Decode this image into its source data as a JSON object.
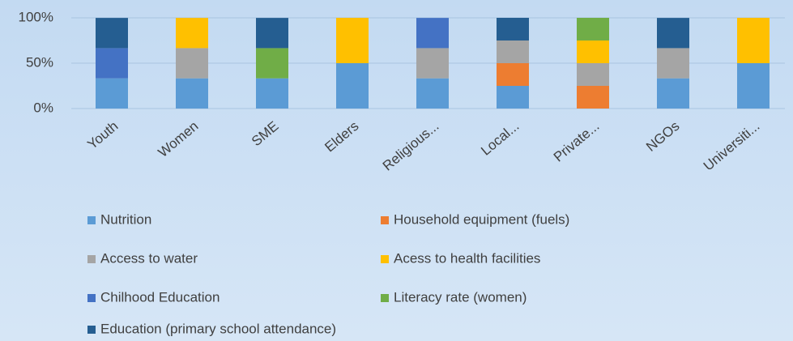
{
  "chart_data": {
    "type": "stacked_bar",
    "categories": [
      "Youth",
      "Women",
      "SME",
      "Elders",
      "Religious...",
      "Local...",
      "Private...",
      "NGOs",
      "Universiti..."
    ],
    "series": [
      {
        "name": "Nutrition",
        "color": "#5b9bd5",
        "values": [
          33.3,
          33.3,
          33.3,
          50,
          33.3,
          25,
          0,
          33.3,
          50
        ]
      },
      {
        "name": "Household equipment (fuels)",
        "color": "#ed7d31",
        "values": [
          0,
          0,
          0,
          0,
          0,
          25,
          25,
          0,
          0
        ]
      },
      {
        "name": "Access to water",
        "color": "#a5a5a5",
        "values": [
          0,
          33.3,
          0,
          0,
          33.3,
          25,
          25,
          33.3,
          0
        ]
      },
      {
        "name": "Acess to health facilities",
        "color": "#ffc000",
        "values": [
          0,
          33.3,
          0,
          50,
          0,
          0,
          25,
          0,
          50
        ]
      },
      {
        "name": "Chilhood Education",
        "color": "#4472c4",
        "values": [
          33.3,
          0,
          0,
          0,
          33.3,
          0,
          0,
          0,
          0
        ]
      },
      {
        "name": "Literacy rate (women)",
        "color": "#70ad47",
        "values": [
          0,
          0,
          33.3,
          0,
          0,
          0,
          25,
          0,
          0
        ]
      },
      {
        "name": "Education (primary school attendance)",
        "color": "#255e91",
        "values": [
          33.3,
          0,
          33.3,
          0,
          0,
          25,
          0,
          33.3,
          0
        ]
      }
    ],
    "ylim": [
      0,
      100
    ],
    "yticks": [
      {
        "value": 0,
        "label": "0%"
      },
      {
        "value": 50,
        "label": "50%"
      },
      {
        "value": 100,
        "label": "100%"
      }
    ],
    "grid": true
  }
}
